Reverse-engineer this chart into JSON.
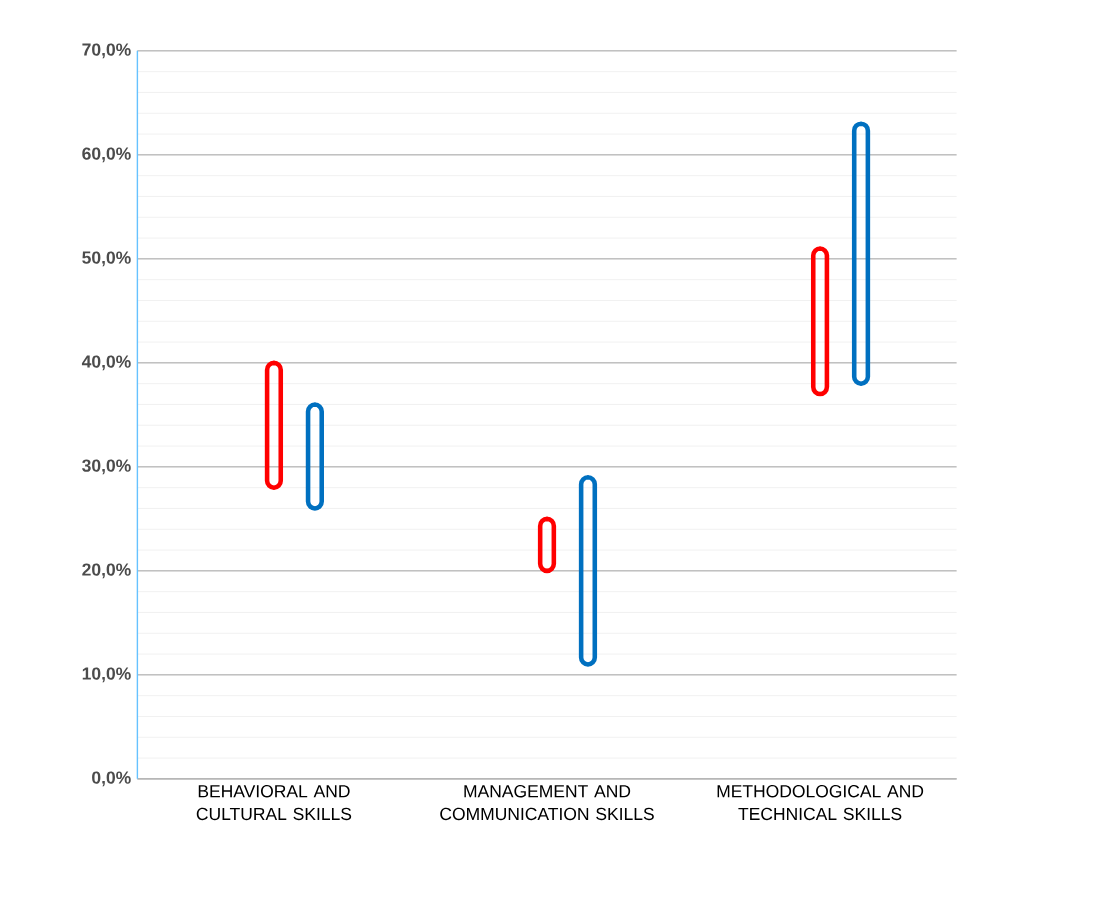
{
  "chart_data": {
    "type": "bar",
    "categories": [
      "BEHAVIORAL AND CULTURAL SKILLS",
      "MANAGEMENT AND COMMUNICATION SKILLS",
      "METHODOLOGICAL AND TECHNICAL SKILLS"
    ],
    "series": [
      {
        "color": "#ff0000",
        "base": [
          28,
          20,
          37
        ],
        "values": [
          12,
          5,
          14
        ]
      },
      {
        "color": "#0070c0",
        "base": [
          26,
          11,
          38
        ],
        "values": [
          10,
          18,
          25
        ]
      }
    ],
    "ylim": [
      0,
      70
    ],
    "yticks": [
      {
        "value": 0,
        "label": "0,0%"
      },
      {
        "value": 10,
        "label": "10,0%"
      },
      {
        "value": 20,
        "label": "20,0%"
      },
      {
        "value": 30,
        "label": "30,0%"
      },
      {
        "value": 40,
        "label": "40,0%"
      },
      {
        "value": 50,
        "label": "50,0%"
      },
      {
        "value": 60,
        "label": "60,0%"
      },
      {
        "value": 70,
        "label": "70,0%"
      }
    ],
    "grid": "y"
  }
}
